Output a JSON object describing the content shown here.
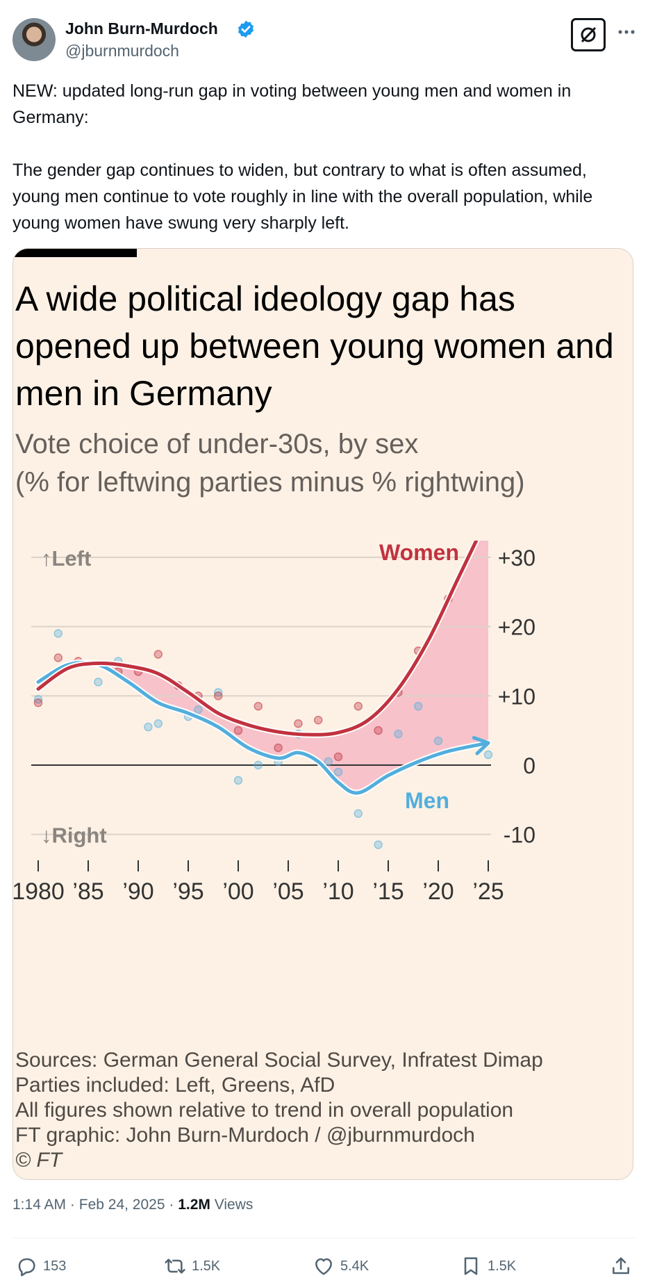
{
  "tweet": {
    "author_name": "John Burn-Murdoch",
    "author_handle": "@jburnmurdoch",
    "text_paragraphs": [
      "NEW: updated long-run gap in voting between young men and women in Germany:",
      "The gender gap continues to widen, but contrary to what is often assumed, young men continue to vote roughly in line with the overall population, while young women have swung very sharply left."
    ],
    "time": "1:14 AM",
    "date": "Feb 24, 2025",
    "views_count": "1.2M",
    "views_label": "Views",
    "separator": "·"
  },
  "actions": {
    "replies": "153",
    "reposts": "1.5K",
    "likes": "5.4K",
    "bookmarks": "1.5K"
  },
  "icons": [
    "avatar",
    "verified-badge-icon",
    "grok-icon",
    "more-icon",
    "reply-icon",
    "repost-icon",
    "like-icon",
    "bookmark-icon",
    "share-icon"
  ],
  "colors": {
    "women": "#c1323f",
    "men": "#52aedc",
    "gap_fill": "#f6bcc7",
    "card_bg": "#fdf1e5",
    "verified": "#1d9bf0"
  },
  "chart": {
    "title": "A wide political ideology gap has opened up between young women and men in Germany",
    "subtitle_line1": "Vote choice of under-30s, by sex",
    "subtitle_line2": "(% for leftwing parties minus % rightwing)",
    "notes": [
      "Sources: German General Social Survey, Infratest Dimap",
      "Parties included: Left, Greens, AfD",
      "All figures shown relative to trend in overall population",
      "FT graphic: John Burn-Murdoch / @jburnmurdoch"
    ],
    "copyright": "© FT"
  },
  "chart_data": {
    "type": "line",
    "title": "A wide political ideology gap has opened up between young women and men in Germany",
    "subtitle": "Vote choice of under-30s, by sex (% for leftwing parties minus % rightwing)",
    "x_tick_labels": [
      "1980",
      "’85",
      "’90",
      "’95",
      "’00",
      "’05",
      "’10",
      "’15",
      "’20",
      "’25"
    ],
    "x_ticks": [
      1980,
      1985,
      1990,
      1995,
      2000,
      2005,
      2010,
      2015,
      2020,
      2025
    ],
    "y_tick_labels": [
      "+30",
      "+20",
      "+10",
      "0",
      "-10"
    ],
    "y_ticks": [
      30,
      20,
      10,
      0,
      -10
    ],
    "xlim": [
      1980,
      2025
    ],
    "ylim": [
      -13,
      37
    ],
    "annotations": {
      "left": "Left",
      "right": "Right",
      "up_arrow": "↑",
      "down_arrow": "↓"
    },
    "grid": true,
    "series": [
      {
        "name": "Women",
        "trend_x": [
          1980,
          1983,
          1986,
          1989,
          1992,
          1995,
          1998,
          2001,
          2004,
          2007,
          2010,
          2013,
          2016,
          2019,
          2022,
          2025
        ],
        "trend_y": [
          11,
          14,
          14.7,
          14.3,
          13.2,
          10.5,
          7.5,
          5.8,
          4.8,
          4.4,
          4.7,
          6.5,
          11,
          18,
          27,
          36
        ],
        "points_x": [
          1980,
          1982,
          1984,
          1988,
          1990,
          1992,
          1994,
          1996,
          1998,
          2000,
          2002,
          2004,
          2006,
          2008,
          2010,
          2012,
          2014,
          2016,
          2018,
          2021
        ],
        "points_y": [
          9,
          15.5,
          15,
          13.5,
          13.5,
          16,
          11.5,
          10,
          10,
          5,
          8.5,
          2.5,
          6,
          6.5,
          1.2,
          8.5,
          5,
          10.5,
          16.5,
          24
        ]
      },
      {
        "name": "Men",
        "trend_x": [
          1980,
          1983,
          1986,
          1989,
          1992,
          1995,
          1998,
          2001,
          2004,
          2006,
          2008,
          2010,
          2012,
          2015,
          2018,
          2021,
          2025
        ],
        "trend_y": [
          12,
          14.5,
          14.5,
          12,
          9,
          7.5,
          5.5,
          2.5,
          1,
          1.8,
          0.5,
          -2.5,
          -4,
          -1.5,
          0.5,
          2,
          3.2
        ],
        "points_x": [
          1980,
          1982,
          1986,
          1988,
          1991,
          1992,
          1995,
          1996,
          1998,
          2000,
          2002,
          2004,
          2006,
          2009,
          2010,
          2012,
          2014,
          2016,
          2018,
          2020,
          2025
        ],
        "points_y": [
          9.5,
          19,
          12,
          15,
          5.5,
          6,
          7,
          8,
          10.5,
          -2.2,
          0,
          0.5,
          4.5,
          0.5,
          -1,
          -7,
          -11.5,
          4.5,
          8.5,
          3.5,
          1.5
        ]
      }
    ]
  }
}
